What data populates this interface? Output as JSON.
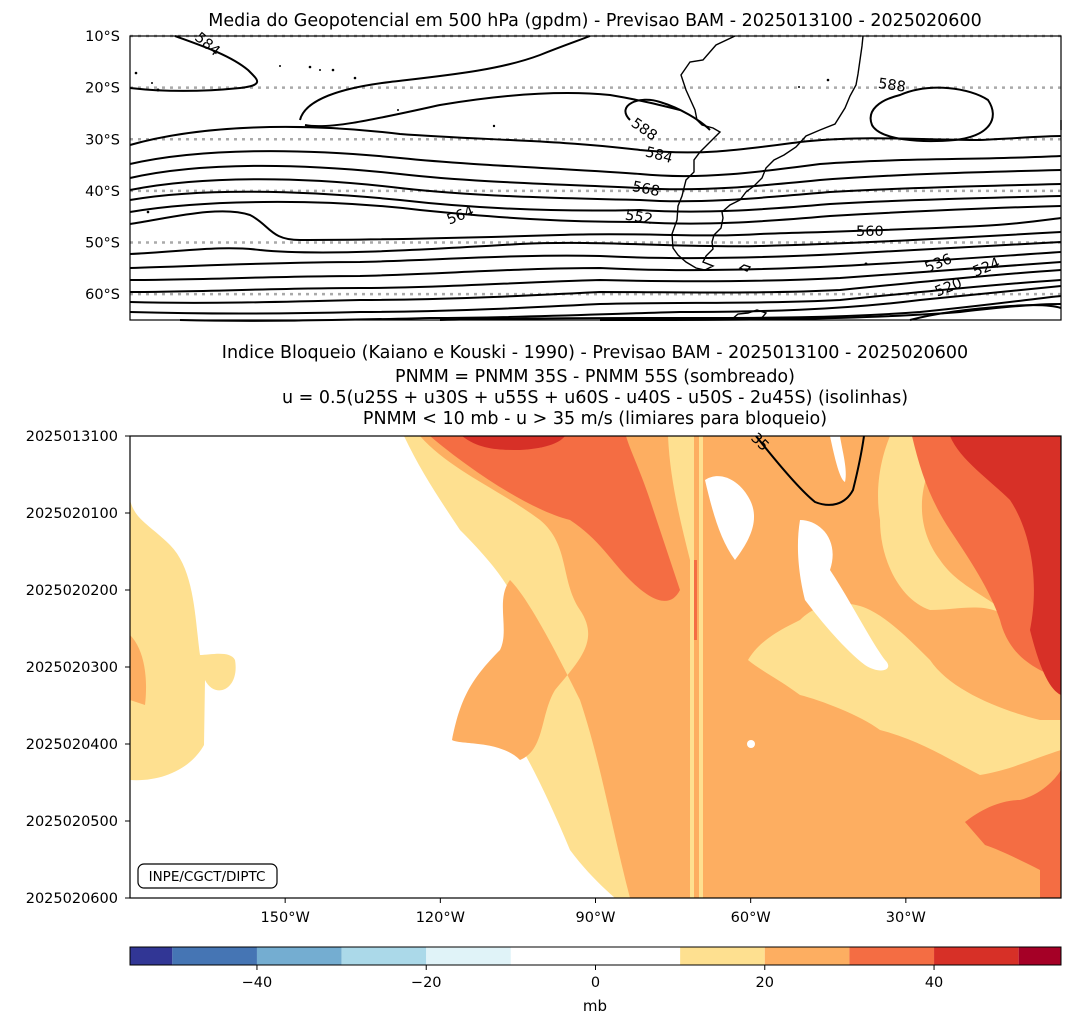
{
  "chart_data": [
    {
      "type": "contour",
      "title": "Media do Geopotencial em 500 hPa (gpdm) - Previsao BAM - 2025013100 - 2025020600",
      "y_ticks": [
        "10°S",
        "20°S",
        "30°S",
        "40°S",
        "50°S",
        "60°S"
      ],
      "y_values": [
        -10,
        -20,
        -30,
        -40,
        -50,
        -60
      ],
      "ylim": [
        -65,
        -10
      ],
      "xlim": [
        -180,
        0
      ],
      "grid": "dotted horizontal",
      "contour_labels": [
        {
          "text": "584",
          "lon": -164,
          "lat": -12
        },
        {
          "text": "588",
          "lon": -50,
          "lat": -20
        },
        {
          "text": "588",
          "lon": -77,
          "lat": -29
        },
        {
          "text": "584",
          "lon": -75,
          "lat": -33
        },
        {
          "text": "568",
          "lon": -76,
          "lat": -40
        },
        {
          "text": "564",
          "lon": -117,
          "lat": -44
        },
        {
          "text": "552",
          "lon": -80,
          "lat": -45
        },
        {
          "text": "560",
          "lon": -35,
          "lat": -48
        },
        {
          "text": "536",
          "lon": -25,
          "lat": -53
        },
        {
          "text": "524",
          "lon": -16,
          "lat": -55
        },
        {
          "text": "520",
          "lon": -23,
          "lat": -58
        }
      ]
    },
    {
      "type": "filled-contour",
      "title_lines": [
        "Indice Bloqueio (Kaiano e Kouski - 1990) - Previsao BAM - 2025013100 - 2025020600",
        "PNMM = PNMM 35S - PNMM 55S (sombreado)",
        "u = 0.5(u25S + u30S + u55S + u60S - u40S - u50S - 2u45S) (isolinhas)",
        "PNMM < 10 mb - u > 35 m/s (limiares para bloqueio)"
      ],
      "y_ticks": [
        "2025013100",
        "2025020100",
        "2025020200",
        "2025020300",
        "2025020400",
        "2025020500",
        "2025020600"
      ],
      "x_ticks": [
        "150°W",
        "120°W",
        "90°W",
        "60°W",
        "30°W"
      ],
      "x_values": [
        -150,
        -120,
        -90,
        -60,
        -30
      ],
      "xlim": [
        -180,
        0
      ],
      "isoline_label": "35",
      "annotation": "INPE/CGCT/DIPTC"
    }
  ],
  "colorbar": {
    "label": "mb",
    "ticks": [
      "−40",
      "−20",
      "0",
      "20",
      "40"
    ],
    "tick_values": [
      -40,
      -20,
      0,
      20,
      40
    ],
    "range": [
      -55,
      55
    ],
    "levels": [
      -55,
      -50,
      -40,
      -30,
      -20,
      -10,
      10,
      20,
      30,
      40,
      50,
      55
    ],
    "colors": [
      "#313695",
      "#4575b4",
      "#74add1",
      "#abd9e9",
      "#e0f3f8",
      "#ffffff",
      "#fee090",
      "#fdae61",
      "#f46d43",
      "#d73027",
      "#a50026"
    ]
  }
}
